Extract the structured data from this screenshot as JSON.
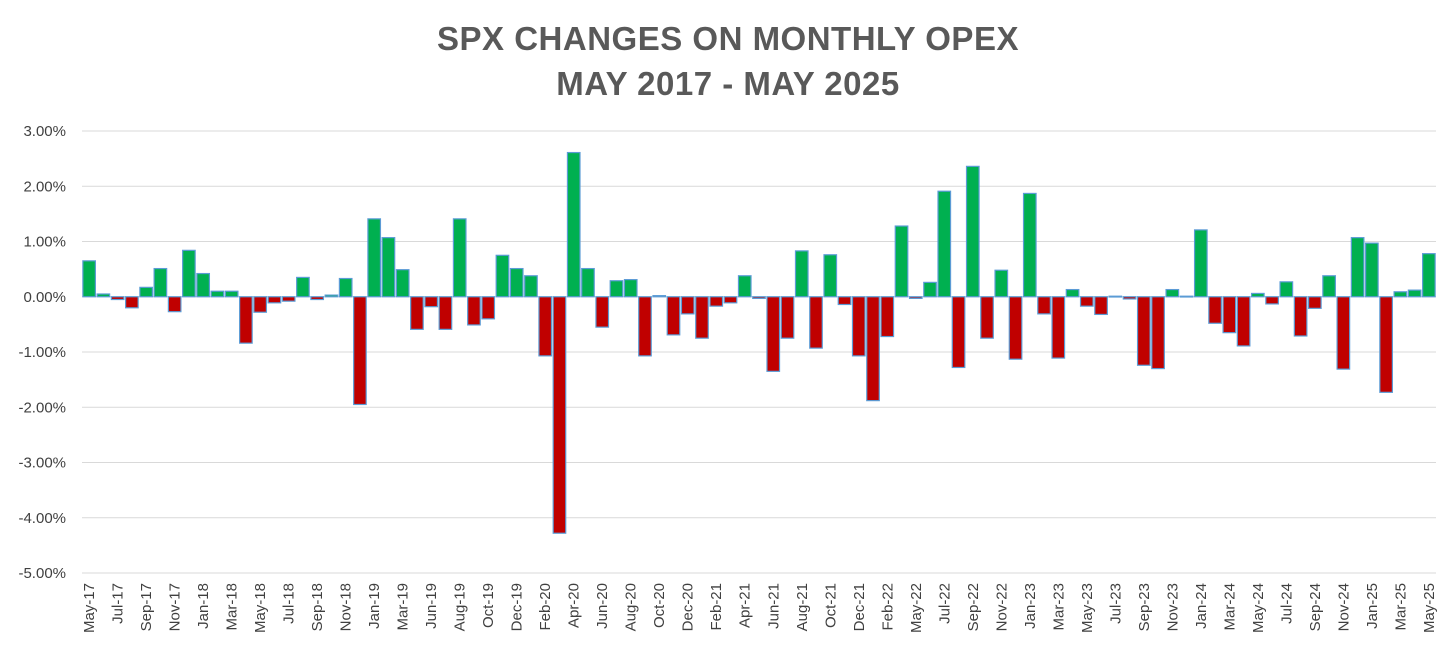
{
  "chart_data": {
    "type": "bar",
    "title": "SPX CHANGES ON MONTHLY OPEX",
    "subtitle": "MAY 2017 - MAY 2025",
    "xlabel": "",
    "ylabel": "",
    "ylim": [
      -5.0,
      3.0
    ],
    "yticks": [
      3.0,
      2.0,
      1.0,
      0.0,
      -1.0,
      -2.0,
      -3.0,
      -4.0,
      -5.0
    ],
    "ytick_labels": [
      "3.00%",
      "2.00%",
      "1.00%",
      "0.00%",
      "-1.00%",
      "-2.00%",
      "-3.00%",
      "-4.00%",
      "-5.00%"
    ],
    "grid": true,
    "positive_color": "#00b050",
    "negative_color": "#c00000",
    "border_color": "#5b9bd5",
    "categories": [
      "May-17",
      "Jun-17",
      "Jul-17",
      "Aug-17",
      "Sep-17",
      "Oct-17",
      "Nov-17",
      "Dec-17",
      "Jan-18",
      "Feb-18",
      "Mar-18",
      "Apr-18",
      "May-18",
      "Jun-18",
      "Jul-18",
      "Aug-18",
      "Sep-18",
      "Oct-18",
      "Nov-18",
      "Dec-18",
      "Jan-19",
      "Feb-19",
      "Mar-19",
      "Apr-19",
      "Jun-19",
      "Jul-19",
      "Aug-19",
      "Sep-19",
      "Oct-19",
      "Nov-19",
      "Dec-19",
      "Jan-20",
      "Feb-20",
      "Mar-20",
      "Apr-20",
      "May-20",
      "Jun-20",
      "Jul-20",
      "Aug-20",
      "Sep-20",
      "Oct-20",
      "Nov-20",
      "Dec-20",
      "Jan-21",
      "Feb-21",
      "Mar-21",
      "Apr-21",
      "May-21",
      "Jun-21",
      "Jul-21",
      "Aug-21",
      "Sep-21",
      "Oct-21",
      "Nov-21",
      "Dec-21",
      "Jan-22",
      "Feb-22",
      "Mar-22",
      "May-22",
      "Jun-22",
      "Jul-22",
      "Aug-22",
      "Sep-22",
      "Oct-22",
      "Nov-22",
      "Dec-22",
      "Jan-23",
      "Feb-23",
      "Mar-23",
      "Apr-23",
      "May-23",
      "Jun-23",
      "Jul-23",
      "Aug-23",
      "Sep-23",
      "Oct-23",
      "Nov-23",
      "Dec-23",
      "Jan-24",
      "Feb-24",
      "Mar-24",
      "Apr-24",
      "May-24",
      "Jun-24",
      "Jul-24",
      "Aug-24",
      "Sep-24",
      "Oct-24",
      "Nov-24",
      "Dec-24",
      "Jan-25",
      "Feb-25",
      "Mar-25",
      "Apr-25",
      "May-25"
    ],
    "tick_labels": [
      "May-17",
      "Jul-17",
      "Sep-17",
      "Nov-17",
      "Jan-18",
      "Mar-18",
      "May-18",
      "Jul-18",
      "Sep-18",
      "Nov-18",
      "Jan-19",
      "Mar-19",
      "Jun-19",
      "Aug-19",
      "Oct-19",
      "Dec-19",
      "Feb-20",
      "Apr-20",
      "Jun-20",
      "Aug-20",
      "Oct-20",
      "Dec-20",
      "Feb-21",
      "Apr-21",
      "Jun-21",
      "Aug-21",
      "Oct-21",
      "Dec-21",
      "Feb-22",
      "May-22",
      "Jul-22",
      "Sep-22",
      "Nov-22",
      "Jan-23",
      "Mar-23",
      "May-23",
      "Jul-23",
      "Sep-23",
      "Nov-23",
      "Jan-24",
      "Mar-24",
      "May-24",
      "Jul-24",
      "Sep-24",
      "Nov-24",
      "Jan-25",
      "Mar-25",
      "May-25"
    ],
    "values": [
      0.65,
      0.05,
      -0.05,
      -0.2,
      0.17,
      0.51,
      -0.27,
      0.84,
      0.42,
      0.1,
      0.1,
      -0.84,
      -0.28,
      -0.11,
      -0.08,
      0.35,
      -0.05,
      0.03,
      0.33,
      -1.95,
      1.41,
      1.07,
      0.49,
      -0.59,
      -0.18,
      -0.59,
      1.41,
      -0.51,
      -0.4,
      0.75,
      0.51,
      0.38,
      -1.07,
      -4.28,
      2.61,
      0.51,
      -0.55,
      0.29,
      0.31,
      -1.07,
      0.02,
      -0.69,
      -0.31,
      -0.75,
      -0.17,
      -0.11,
      0.38,
      -0.03,
      -1.35,
      -0.75,
      0.83,
      -0.93,
      0.76,
      -0.14,
      -1.07,
      -1.88,
      -0.72,
      1.28,
      -0.03,
      0.26,
      1.91,
      -1.28,
      2.36,
      -0.75,
      0.48,
      -1.13,
      1.87,
      -0.31,
      -1.11,
      0.13,
      -0.17,
      -0.32,
      0.01,
      -0.04,
      -1.24,
      -1.3,
      0.13,
      0.01,
      1.21,
      -0.48,
      -0.65,
      -0.89,
      0.06,
      -0.13,
      0.27,
      -0.71,
      -0.21,
      0.38,
      -1.31,
      1.07,
      0.97,
      -1.73,
      0.09,
      0.12,
      0.78
    ]
  }
}
